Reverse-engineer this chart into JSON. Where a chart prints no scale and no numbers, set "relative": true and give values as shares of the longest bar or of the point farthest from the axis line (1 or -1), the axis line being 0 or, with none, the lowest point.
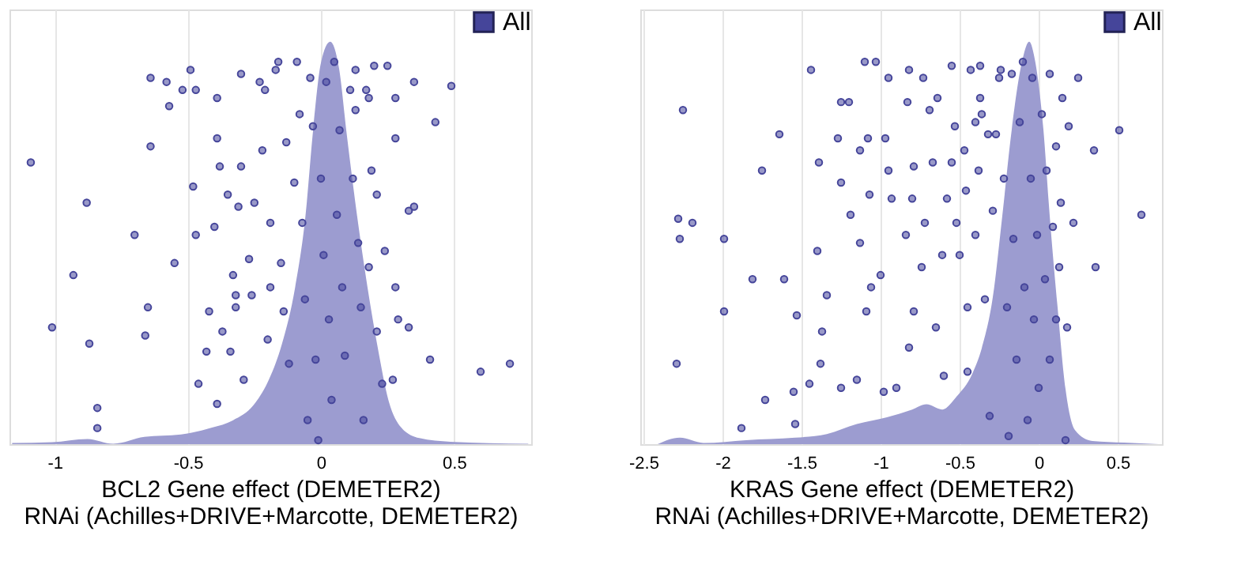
{
  "chart_data": [
    {
      "type": "area",
      "xlabel": "BCL2 Gene effect (DEMETER2)\nRNAi (Achilles+DRIVE+Marcotte, DEMETER2)",
      "xlim": [
        -1.17,
        0.79
      ],
      "xticks": [
        -1,
        -0.5,
        0,
        0.5
      ],
      "relative": true,
      "grid": "x",
      "legend": "top right",
      "series": [
        {
          "color": "#9c9cd0",
          "x": [
            -1.16,
            -1.01,
            -0.877,
            -0.78,
            -0.663,
            -0.526,
            -0.409,
            -0.331,
            -0.253,
            -0.195,
            -0.146,
            -0.097,
            -0.058,
            -0.029,
            0,
            0.035,
            0.068,
            0.097,
            0.136,
            0.175,
            0.214,
            0.253,
            0.302,
            0.37,
            0.487,
            0.779
          ],
          "values": [
            0.003,
            0.005,
            0.013,
            0.001,
            0.018,
            0.024,
            0.041,
            0.059,
            0.097,
            0.161,
            0.25,
            0.389,
            0.567,
            0.782,
            0.947,
            1.0,
            0.934,
            0.77,
            0.567,
            0.39,
            0.238,
            0.111,
            0.041,
            0.015,
            0.006,
            0.001
          ]
        },
        {
          "type": "scatter",
          "name": "All",
          "color": "#45459a",
          "marker": "circle",
          "x": [
            -1.09,
            -0.88,
            -0.93,
            -1.01,
            -0.87,
            -0.84,
            -0.84,
            -0.7,
            -0.64,
            -0.58,
            -0.64,
            -0.65,
            -0.66,
            -0.57,
            -0.55,
            -0.52,
            -0.49,
            -0.47,
            -0.48,
            -0.47,
            -0.46,
            -0.42,
            -0.43,
            -0.4,
            -0.39,
            -0.39,
            -0.38,
            -0.37,
            -0.39,
            -0.35,
            -0.34,
            -0.3,
            -0.3,
            -0.31,
            -0.33,
            -0.32,
            -0.32,
            -0.29,
            -0.27,
            -0.26,
            -0.25,
            -0.23,
            -0.22,
            -0.21,
            -0.2,
            -0.19,
            -0.19,
            -0.17,
            -0.16,
            -0.15,
            -0.13,
            -0.14,
            -0.12,
            -0.09,
            -0.1,
            -0.08,
            -0.07,
            -0.06,
            -0.05,
            -0.04,
            -0.03,
            -0.02,
            -0.01,
            0.0,
            0.01,
            0.02,
            0.03,
            0.04,
            0.05,
            0.06,
            0.07,
            0.08,
            0.09,
            0.11,
            0.12,
            0.13,
            0.13,
            0.14,
            0.15,
            0.16,
            0.17,
            0.18,
            0.18,
            0.19,
            0.2,
            0.21,
            0.21,
            0.24,
            0.23,
            0.25,
            0.28,
            0.28,
            0.28,
            0.29,
            0.27,
            0.33,
            0.33,
            0.35,
            0.35,
            0.41,
            0.43,
            0.49,
            0.6,
            0.71
          ],
          "values": [
            0.7,
            0.6,
            0.42,
            0.29,
            0.25,
            0.09,
            0.04,
            0.52,
            0.91,
            0.9,
            0.74,
            0.34,
            0.27,
            0.84,
            0.45,
            0.88,
            0.93,
            0.88,
            0.64,
            0.52,
            0.15,
            0.33,
            0.23,
            0.54,
            0.76,
            0.86,
            0.69,
            0.28,
            0.1,
            0.62,
            0.23,
            0.92,
            0.69,
            0.59,
            0.42,
            0.37,
            0.34,
            0.16,
            0.46,
            0.37,
            0.6,
            0.9,
            0.73,
            0.88,
            0.26,
            0.55,
            0.39,
            0.93,
            0.95,
            0.45,
            0.75,
            0.33,
            0.2,
            0.95,
            0.65,
            0.82,
            0.55,
            0.36,
            0.06,
            0.91,
            0.79,
            0.21,
            0.01,
            0.66,
            0.47,
            0.9,
            0.31,
            0.11,
            0.95,
            0.57,
            0.78,
            0.39,
            0.22,
            0.88,
            0.66,
            0.93,
            0.83,
            0.5,
            0.34,
            0.06,
            0.88,
            0.44,
            0.86,
            0.68,
            0.94,
            0.62,
            0.28,
            0.48,
            0.15,
            0.94,
            0.76,
            0.86,
            0.39,
            0.31,
            0.16,
            0.29,
            0.58,
            0.9,
            0.59,
            0.21,
            0.8,
            0.89,
            0.18,
            0.2
          ]
        }
      ]
    },
    {
      "type": "area",
      "xlabel": "KRAS Gene effect (DEMETER2)\nRNAi (Achilles+DRIVE+Marcotte, DEMETER2)",
      "xlim": [
        -2.52,
        0.78
      ],
      "xticks": [
        -2.5,
        -2,
        -1.5,
        -1,
        -0.5,
        0,
        0.5
      ],
      "relative": true,
      "grid": "x",
      "legend": "top right",
      "series": [
        {
          "color": "#9c9cd0",
          "x": [
            -2.41,
            -2.27,
            -2.12,
            -1.85,
            -1.54,
            -1.34,
            -1.15,
            -0.96,
            -0.8,
            -0.71,
            -0.61,
            -0.52,
            -0.42,
            -0.36,
            -0.29,
            -0.23,
            -0.17,
            -0.1,
            -0.06,
            -0.02,
            0.03,
            0.07,
            0.12,
            0.17,
            0.23,
            0.34,
            0.54,
            0.76
          ],
          "values": [
            0,
            0.016,
            0.003,
            0.01,
            0.016,
            0.025,
            0.05,
            0.067,
            0.086,
            0.099,
            0.086,
            0.118,
            0.175,
            0.238,
            0.365,
            0.567,
            0.782,
            0.959,
            1.0,
            0.947,
            0.782,
            0.567,
            0.339,
            0.137,
            0.035,
            0.008,
            0.004,
            0
          ]
        },
        {
          "type": "scatter",
          "name": "All",
          "color": "#45459a",
          "marker": "circle",
          "x": [
            -2.25,
            -2.28,
            -2.19,
            -2.27,
            -2.29,
            -1.99,
            -1.99,
            -1.88,
            -1.81,
            -1.75,
            -1.73,
            -1.64,
            -1.61,
            -1.55,
            -1.54,
            -1.53,
            -1.44,
            -1.45,
            -1.4,
            -1.39,
            -1.38,
            -1.37,
            -1.34,
            -1.27,
            -1.25,
            -1.25,
            -1.25,
            -1.2,
            -1.19,
            -1.15,
            -1.13,
            -1.13,
            -1.1,
            -1.08,
            -1.07,
            -1.09,
            -1.06,
            -1.03,
            -1.0,
            -0.98,
            -0.97,
            -0.95,
            -0.95,
            -0.93,
            -0.9,
            -0.84,
            -0.83,
            -0.82,
            -0.82,
            -0.8,
            -0.79,
            -0.79,
            -0.74,
            -0.73,
            -0.72,
            -0.69,
            -0.67,
            -0.65,
            -0.64,
            -0.61,
            -0.6,
            -0.58,
            -0.55,
            -0.55,
            -0.53,
            -0.52,
            -0.5,
            -0.47,
            -0.46,
            -0.45,
            -0.43,
            -0.45,
            -0.4,
            -0.4,
            -0.38,
            -0.37,
            -0.37,
            -0.36,
            -0.34,
            -0.32,
            -0.31,
            -0.29,
            -0.27,
            -0.25,
            -0.24,
            -0.22,
            -0.2,
            -0.19,
            -0.17,
            -0.16,
            -0.14,
            -0.12,
            -0.1,
            -0.09,
            -0.07,
            -0.05,
            -0.04,
            -0.03,
            -0.01,
            0.0,
            0.02,
            0.04,
            0.05,
            0.07,
            0.07,
            0.09,
            0.11,
            0.11,
            0.13,
            0.14,
            0.15,
            0.17,
            0.18,
            0.19,
            0.22,
            0.25,
            0.35,
            0.36,
            0.51,
            0.65
          ],
          "values": [
            0.83,
            0.56,
            0.55,
            0.51,
            0.2,
            0.51,
            0.33,
            0.04,
            0.41,
            0.68,
            0.11,
            0.77,
            0.41,
            0.13,
            0.05,
            0.32,
            0.93,
            0.15,
            0.48,
            0.7,
            0.2,
            0.28,
            0.37,
            0.76,
            0.65,
            0.85,
            0.14,
            0.85,
            0.57,
            0.16,
            0.5,
            0.73,
            0.95,
            0.76,
            0.62,
            0.33,
            0.39,
            0.95,
            0.42,
            0.13,
            0.76,
            0.91,
            0.68,
            0.61,
            0.14,
            0.52,
            0.85,
            0.93,
            0.24,
            0.61,
            0.69,
            0.33,
            0.44,
            0.91,
            0.55,
            0.83,
            0.7,
            0.29,
            0.86,
            0.47,
            0.17,
            0.61,
            0.94,
            0.7,
            0.79,
            0.55,
            0.47,
            0.73,
            0.63,
            0.18,
            0.93,
            0.34,
            0.8,
            0.52,
            0.68,
            0.94,
            0.86,
            0.82,
            0.36,
            0.77,
            0.07,
            0.58,
            0.77,
            0.91,
            0.93,
            0.66,
            0.34,
            0.02,
            0.92,
            0.51,
            0.21,
            0.8,
            0.95,
            0.39,
            0.06,
            0.66,
            0.91,
            0.31,
            0.52,
            0.14,
            0.82,
            0.41,
            0.68,
            0.92,
            0.21,
            0.54,
            0.74,
            0.31,
            0.44,
            0.6,
            0.86,
            0.01,
            0.29,
            0.79,
            0.55,
            0.91,
            0.73,
            0.44,
            0.78,
            0.57
          ]
        }
      ]
    }
  ]
}
